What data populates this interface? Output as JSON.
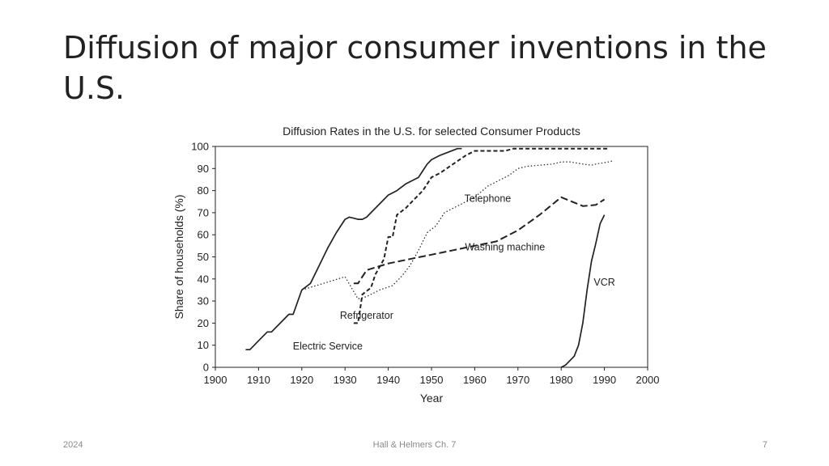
{
  "slide": {
    "title": "Diffusion of major consumer inventions in the U.S.",
    "footer_left": "2024",
    "footer_center": "Hall & Helmers Ch. 7",
    "footer_right": "7"
  },
  "chart_data": {
    "type": "line",
    "title": "Diffusion Rates in the U.S. for selected Consumer Products",
    "xlabel": "Year",
    "ylabel": "Share of households (%)",
    "xlim": [
      1900,
      2000
    ],
    "ylim": [
      0,
      100
    ],
    "xticks": [
      1900,
      1910,
      1920,
      1930,
      1940,
      1950,
      1960,
      1970,
      1980,
      1990,
      2000
    ],
    "yticks": [
      0,
      10,
      20,
      30,
      40,
      50,
      60,
      70,
      80,
      90,
      100
    ],
    "grid": false,
    "legend": "none",
    "series": [
      {
        "name": "Electric Service",
        "style": "solid",
        "points": [
          [
            1907,
            8
          ],
          [
            1908,
            8
          ],
          [
            1910,
            12
          ],
          [
            1912,
            16
          ],
          [
            1913,
            16
          ],
          [
            1915,
            20
          ],
          [
            1917,
            24
          ],
          [
            1918,
            24
          ],
          [
            1920,
            35
          ],
          [
            1922,
            38
          ],
          [
            1924,
            46
          ],
          [
            1926,
            54
          ],
          [
            1928,
            61
          ],
          [
            1930,
            67
          ],
          [
            1931,
            68
          ],
          [
            1932,
            67.5
          ],
          [
            1933,
            67
          ],
          [
            1934,
            67
          ],
          [
            1935,
            68
          ],
          [
            1936,
            70
          ],
          [
            1938,
            74
          ],
          [
            1940,
            78
          ],
          [
            1942,
            80
          ],
          [
            1944,
            83
          ],
          [
            1946,
            85
          ],
          [
            1947,
            86
          ],
          [
            1948,
            89
          ],
          [
            1949,
            92
          ],
          [
            1950,
            94
          ],
          [
            1952,
            96
          ],
          [
            1954,
            97.5
          ],
          [
            1956,
            99
          ],
          [
            1957,
            99
          ]
        ]
      },
      {
        "name": "Telephone",
        "style": "dotted",
        "points": [
          [
            1920,
            35
          ],
          [
            1925,
            38
          ],
          [
            1930,
            41
          ],
          [
            1933,
            31
          ],
          [
            1935,
            32
          ],
          [
            1938,
            35
          ],
          [
            1941,
            37
          ],
          [
            1943,
            41
          ],
          [
            1945,
            46
          ],
          [
            1947,
            53
          ],
          [
            1949,
            61
          ],
          [
            1951,
            64
          ],
          [
            1953,
            70
          ],
          [
            1956,
            73
          ],
          [
            1960,
            77
          ],
          [
            1963,
            82
          ],
          [
            1966,
            85
          ],
          [
            1968,
            87
          ],
          [
            1970,
            90
          ],
          [
            1972,
            91
          ],
          [
            1975,
            91.5
          ],
          [
            1978,
            92
          ],
          [
            1980,
            93
          ],
          [
            1982,
            93
          ],
          [
            1985,
            92
          ],
          [
            1987,
            91.5
          ],
          [
            1988,
            92
          ],
          [
            1991,
            93
          ],
          [
            1992,
            93.5
          ]
        ]
      },
      {
        "name": "Refrigerator",
        "style": "dashed",
        "points": [
          [
            1932,
            20
          ],
          [
            1933,
            20
          ],
          [
            1934,
            33
          ],
          [
            1936,
            36
          ],
          [
            1937,
            42
          ],
          [
            1939,
            49
          ],
          [
            1940,
            59
          ],
          [
            1941,
            59
          ],
          [
            1942,
            69
          ],
          [
            1944,
            72
          ],
          [
            1946,
            76
          ],
          [
            1948,
            80
          ],
          [
            1950,
            86
          ],
          [
            1952,
            88
          ],
          [
            1955,
            92
          ],
          [
            1958,
            96
          ],
          [
            1960,
            98
          ],
          [
            1965,
            98
          ],
          [
            1967,
            98
          ],
          [
            1969,
            99
          ],
          [
            1975,
            99
          ],
          [
            1980,
            99
          ],
          [
            1985,
            99
          ],
          [
            1990,
            99
          ],
          [
            1991,
            99
          ]
        ]
      },
      {
        "name": "Washing machine",
        "style": "long-dashed",
        "points": [
          [
            1932,
            38
          ],
          [
            1933,
            38
          ],
          [
            1935,
            44
          ],
          [
            1940,
            47
          ],
          [
            1945,
            49
          ],
          [
            1950,
            51
          ],
          [
            1955,
            53
          ],
          [
            1960,
            55
          ],
          [
            1965,
            57
          ],
          [
            1970,
            62
          ],
          [
            1975,
            69
          ],
          [
            1980,
            77
          ],
          [
            1985,
            73
          ],
          [
            1988,
            73.5
          ],
          [
            1990,
            76
          ]
        ]
      },
      {
        "name": "VCR",
        "style": "solid",
        "points": [
          [
            1980,
            0
          ],
          [
            1981,
            1
          ],
          [
            1982,
            3
          ],
          [
            1983,
            5
          ],
          [
            1984,
            10
          ],
          [
            1985,
            20
          ],
          [
            1986,
            35
          ],
          [
            1987,
            48
          ],
          [
            1988,
            56
          ],
          [
            1989,
            65
          ],
          [
            1990,
            69
          ]
        ]
      }
    ],
    "annotations": [
      {
        "text": "Electric Service",
        "x": 1926,
        "y": 8
      },
      {
        "text": "Telephone",
        "x": 1963,
        "y": 75
      },
      {
        "text": "Refrigerator",
        "x": 1935,
        "y": 22
      },
      {
        "text": "Washing machine",
        "x": 1967,
        "y": 53
      },
      {
        "text": "VCR",
        "x": 1990,
        "y": 37
      }
    ]
  }
}
